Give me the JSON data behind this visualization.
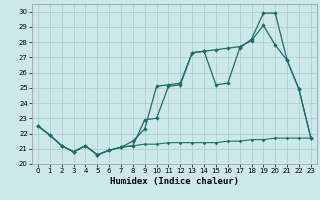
{
  "xlabel": "Humidex (Indice chaleur)",
  "bg_color": "#cce8e8",
  "grid_color": "#aacccc",
  "line_color": "#1a6e6a",
  "xlim": [
    -0.5,
    23.5
  ],
  "ylim": [
    20,
    30.5
  ],
  "xticks": [
    0,
    1,
    2,
    3,
    4,
    5,
    6,
    7,
    8,
    9,
    10,
    11,
    12,
    13,
    14,
    15,
    16,
    17,
    18,
    19,
    20,
    21,
    22,
    23
  ],
  "yticks": [
    20,
    21,
    22,
    23,
    24,
    25,
    26,
    27,
    28,
    29,
    30
  ],
  "line1_x": [
    0,
    1,
    2,
    3,
    4,
    5,
    6,
    7,
    8,
    9,
    10,
    11,
    12,
    13,
    14,
    15,
    16,
    17,
    18,
    19,
    20,
    21,
    22,
    23
  ],
  "line1_y": [
    22.5,
    21.9,
    21.2,
    20.8,
    21.2,
    20.6,
    20.9,
    21.1,
    21.2,
    22.9,
    23.0,
    25.1,
    25.2,
    27.3,
    27.4,
    25.2,
    25.3,
    27.6,
    28.2,
    29.9,
    29.9,
    26.8,
    24.9,
    21.7
  ],
  "line2_x": [
    0,
    1,
    2,
    3,
    4,
    5,
    6,
    7,
    8,
    9,
    10,
    11,
    12,
    13,
    14,
    15,
    16,
    17,
    18,
    19,
    20,
    21,
    22,
    23
  ],
  "line2_y": [
    22.5,
    21.9,
    21.2,
    20.8,
    21.2,
    20.6,
    20.9,
    21.1,
    21.5,
    22.3,
    25.1,
    25.2,
    25.3,
    27.3,
    27.4,
    27.5,
    27.6,
    27.7,
    28.1,
    29.1,
    27.8,
    26.8,
    24.9,
    21.7
  ],
  "line3_x": [
    0,
    1,
    2,
    3,
    4,
    5,
    6,
    7,
    8,
    9,
    10,
    11,
    12,
    13,
    14,
    15,
    16,
    17,
    18,
    19,
    20,
    21,
    22,
    23
  ],
  "line3_y": [
    22.5,
    21.9,
    21.2,
    20.8,
    21.2,
    20.6,
    20.9,
    21.1,
    21.2,
    21.3,
    21.3,
    21.4,
    21.4,
    21.4,
    21.4,
    21.4,
    21.5,
    21.5,
    21.6,
    21.6,
    21.7,
    21.7,
    21.7,
    21.7
  ]
}
